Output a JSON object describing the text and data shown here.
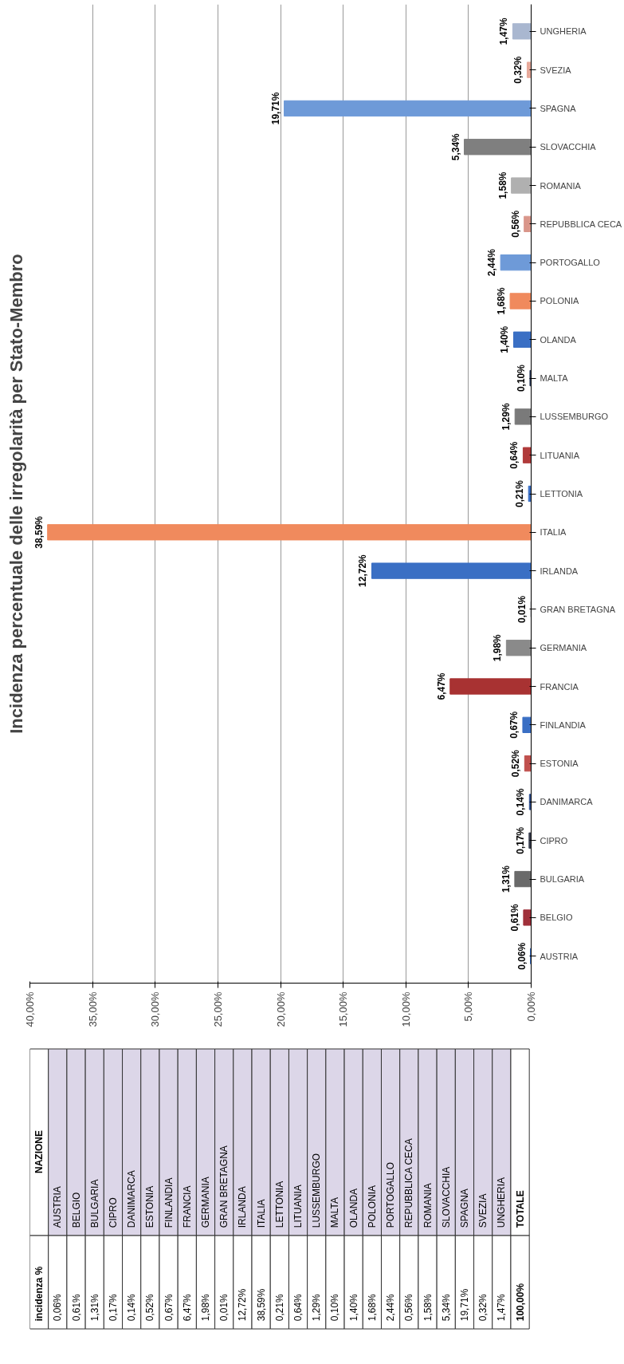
{
  "chart_data": {
    "type": "bar",
    "orientation": "horizontal",
    "title": "Incidenza percentuale delle irregolarità per Stato-Membro",
    "categories": [
      "UNGHERIA",
      "SVEZIA",
      "SPAGNA",
      "SLOVACCHIA",
      "ROMANIA",
      "REPUBBLICA CECA",
      "PORTOGALLO",
      "POLONIA",
      "OLANDA",
      "MALTA",
      "LUSSEMBURGO",
      "LITUANIA",
      "LETTONIA",
      "ITALIA",
      "IRLANDA",
      "GRAN BRETAGNA",
      "GERMANIA",
      "FRANCIA",
      "FINLANDIA",
      "ESTONIA",
      "DANIMARCA",
      "CIPRO",
      "BULGARIA",
      "BELGIO",
      "AUSTRIA"
    ],
    "values": [
      1.47,
      0.32,
      19.71,
      5.34,
      1.58,
      0.56,
      2.44,
      1.68,
      1.4,
      0.1,
      1.29,
      0.64,
      0.21,
      38.59,
      12.72,
      0.01,
      1.98,
      6.47,
      0.67,
      0.52,
      0.14,
      0.17,
      1.31,
      0.61,
      0.06
    ],
    "value_labels": [
      "1,47%",
      "0,32%",
      "19,71%",
      "5,34%",
      "1,58%",
      "0,56%",
      "2,44%",
      "1,68%",
      "1,40%",
      "0,10%",
      "1,29%",
      "0,64%",
      "0,21%",
      "38,59%",
      "12,72%",
      "0,01%",
      "1,98%",
      "6,47%",
      "0,67%",
      "0,52%",
      "0,14%",
      "0,17%",
      "1,31%",
      "0,61%",
      "0,06%"
    ],
    "colors": [
      "#a9b7d0",
      "#e6a99a",
      "#6e9ad8",
      "#7f7f7f",
      "#b0b0b0",
      "#d9968a",
      "#6e9ad8",
      "#f08a5d",
      "#3a6fc4",
      "#2f3e5c",
      "#7a7a7a",
      "#b03a3a",
      "#3a6fc4",
      "#f08a5d",
      "#3a6fc4",
      "#3a3f4f",
      "#8a8a8a",
      "#a83232",
      "#3a6fc4",
      "#c0504d",
      "#2f4f8f",
      "#3a3f4f",
      "#6a6a6a",
      "#a0303a",
      "#3a6fc4"
    ],
    "xlim": [
      40,
      0
    ],
    "xticks": [
      {
        "value": 40,
        "label": "40,00%"
      },
      {
        "value": 35,
        "label": "35,00%"
      },
      {
        "value": 30,
        "label": "30,00%"
      },
      {
        "value": 25,
        "label": "25,00%"
      },
      {
        "value": 20,
        "label": "20,00%"
      },
      {
        "value": 15,
        "label": "15,00%"
      },
      {
        "value": 10,
        "label": "10,00%"
      },
      {
        "value": 5,
        "label": "5,00%"
      },
      {
        "value": 0,
        "label": "0,00%"
      }
    ],
    "grid": "x",
    "annotations": [
      "NAZIONE",
      "incidenza %",
      "TOTALE",
      "100,00%"
    ]
  }
}
